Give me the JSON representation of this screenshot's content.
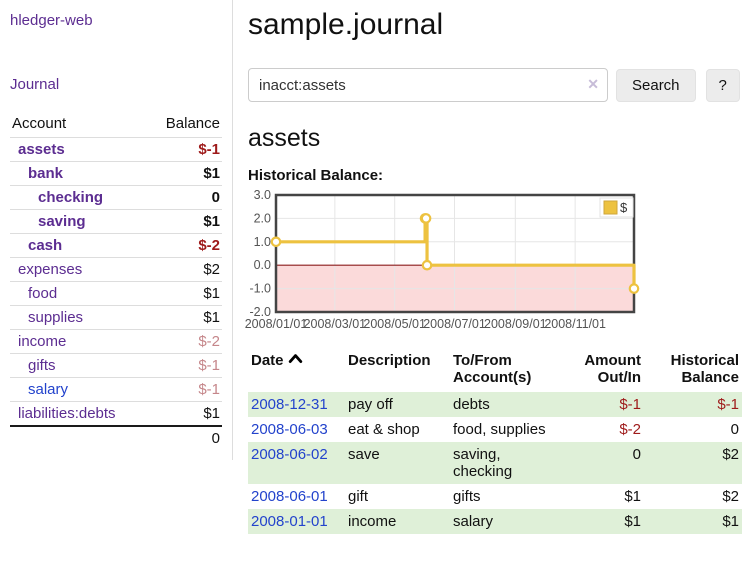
{
  "colors": {
    "accent_purple": "#5c2d91",
    "link_blue": "#2343cc",
    "negative_dark_red": "#9e1a1a",
    "negative_pale_red": "#c5868a",
    "row_green": "#dff0d8",
    "chart_gold": "#edc240",
    "chart_negative_pink": "#fbdada",
    "chart_zero_line_red": "#8b1d1d",
    "chart_frame_gray": "#444444"
  },
  "sidebar": {
    "app_title": "hledger-web",
    "journal_label": "Journal",
    "accounts_table": {
      "account_header": "Account",
      "balance_header": "Balance",
      "rows": [
        {
          "name": "assets",
          "level": 1,
          "emphasized": true,
          "balance": "$-1",
          "balance_style": "negstrong"
        },
        {
          "name": "bank",
          "level": 2,
          "emphasized": true,
          "balance": "$1",
          "balance_style": "strong"
        },
        {
          "name": "checking",
          "level": 3,
          "emphasized": true,
          "balance": "0",
          "balance_style": "strong"
        },
        {
          "name": "saving",
          "level": 3,
          "emphasized": true,
          "balance": "$1",
          "balance_style": "strong"
        },
        {
          "name": "cash",
          "level": 2,
          "emphasized": true,
          "balance": "$-2",
          "balance_style": "negstrong"
        },
        {
          "name": "expenses",
          "level": 1,
          "emphasized": false,
          "balance": "$2",
          "balance_style": "plain"
        },
        {
          "name": "food",
          "level": 2,
          "emphasized": false,
          "balance": "$1",
          "balance_style": "plain"
        },
        {
          "name": "supplies",
          "level": 2,
          "emphasized": false,
          "balance": "$1",
          "balance_style": "plain"
        },
        {
          "name": "income",
          "level": 1,
          "emphasized": false,
          "balance": "$-2",
          "balance_style": "negpale"
        },
        {
          "name": "gifts",
          "level": 2,
          "emphasized": false,
          "balance": "$-1",
          "balance_style": "negpale"
        },
        {
          "name": "salary",
          "level": 2,
          "emphasized": false,
          "link_color": "blue",
          "balance": "$-1",
          "balance_style": "negpale"
        },
        {
          "name": "liabilities:debts",
          "level": 1,
          "emphasized": false,
          "balance": "$1",
          "balance_style": "plain"
        }
      ],
      "total": "0"
    }
  },
  "main": {
    "title": "sample.journal",
    "search": {
      "value": "inacct:assets",
      "clear_icon": "✕",
      "button_label": "Search",
      "help_label": "?"
    },
    "account_heading": "assets",
    "chart_label": "Historical Balance:",
    "register_table": {
      "headers": {
        "date": "Date",
        "description": "Description",
        "tofrom": "To/From\nAccount(s)",
        "amount": "Amount\nOut/In",
        "balance": "Historical\nBalance"
      },
      "rows": [
        {
          "date": "2008-12-31",
          "description": "pay off",
          "accounts": "debts",
          "amount": "$-1",
          "amount_negative": true,
          "balance": "$-1",
          "balance_negative": true
        },
        {
          "date": "2008-06-03",
          "description": "eat & shop",
          "accounts": "food, supplies",
          "amount": "$-2",
          "amount_negative": true,
          "balance": "0",
          "balance_negative": false
        },
        {
          "date": "2008-06-02",
          "description": "save",
          "accounts": "saving,\nchecking",
          "amount": "0",
          "amount_negative": false,
          "balance": "$2",
          "balance_negative": false
        },
        {
          "date": "2008-06-01",
          "description": "gift",
          "accounts": "gifts",
          "amount": "$1",
          "amount_negative": false,
          "balance": "$2",
          "balance_negative": false
        },
        {
          "date": "2008-01-01",
          "description": "income",
          "accounts": "salary",
          "amount": "$1",
          "amount_negative": false,
          "balance": "$1",
          "balance_negative": false
        }
      ]
    }
  },
  "chart_data": {
    "type": "line",
    "step": true,
    "title": "Historical Balance:",
    "series": [
      {
        "name": "$",
        "x": [
          "2008-01-01",
          "2008-06-01",
          "2008-06-02",
          "2008-06-03",
          "2008-12-31"
        ],
        "values": [
          1,
          2,
          2,
          0,
          -1
        ]
      }
    ],
    "xlim": [
      "2008-01-01",
      "2008-12-31"
    ],
    "ylim": [
      -2,
      3
    ],
    "x_ticks": [
      "2008/01/01",
      "2008/03/01",
      "2008/05/01",
      "2008/07/01",
      "2008/09/01",
      "2008/11/01"
    ],
    "y_ticks": [
      "3.0",
      "2.0",
      "1.0",
      "0.0",
      "-1.0",
      "-2.0"
    ],
    "legend_position": "top-right",
    "legend_label": "$",
    "grid": true,
    "negative_region_shaded": true
  }
}
